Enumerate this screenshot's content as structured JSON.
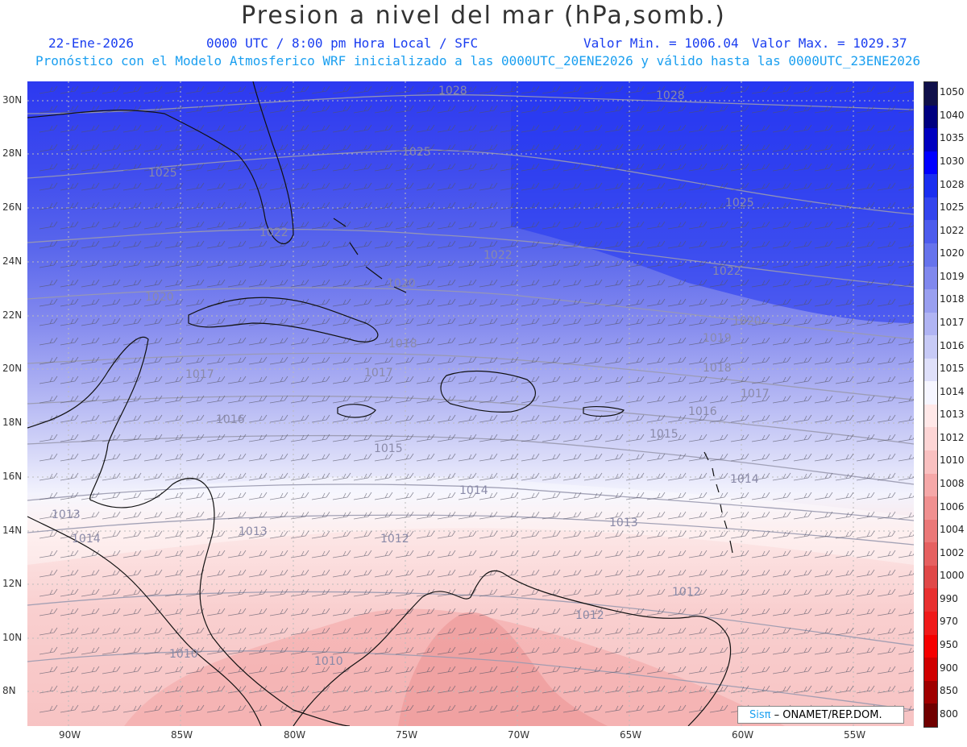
{
  "header": {
    "title": "Presion a nivel del mar (hPa,somb.)",
    "date": "22-Ene-2026",
    "time": "0000 UTC / 8:00 pm Hora Local / SFC",
    "vmin": "Valor Min. = 1006.04",
    "vmax": "Valor Max. = 1029.37",
    "forecast": "Pronóstico con el Modelo Atmosferico WRF inicializado a las 0000UTC_20ENE2026 y válido hasta las  0000UTC_23ENE2026"
  },
  "lat_labels": [
    "30N",
    "28N",
    "26N",
    "24N",
    "22N",
    "20N",
    "18N",
    "16N",
    "14N",
    "12N",
    "10N",
    "8N"
  ],
  "lon_labels": [
    "90W",
    "85W",
    "80W",
    "75W",
    "70W",
    "65W",
    "60W",
    "55W"
  ],
  "colorbar": {
    "labels": [
      "1050",
      "1040",
      "1035",
      "1030",
      "1028",
      "1025",
      "1022",
      "1020",
      "1019",
      "1018",
      "1017",
      "1016",
      "1015",
      "1014",
      "1013",
      "1012",
      "1010",
      "1008",
      "1006",
      "1004",
      "1002",
      "1000",
      "990",
      "970",
      "950",
      "900",
      "850",
      "800"
    ],
    "colors": [
      "#10104a",
      "#000080",
      "#0000c0",
      "#0000ff",
      "#1a2ef0",
      "#3345ee",
      "#4d5ced",
      "#6673ec",
      "#8088ee",
      "#999ff0",
      "#b0b4f3",
      "#c7caf6",
      "#dfe0fa",
      "#f6f6ff",
      "#ffe8e8",
      "#fdd5d5",
      "#f9c0c0",
      "#f5a8a8",
      "#f09090",
      "#eb7878",
      "#e66060",
      "#e04848",
      "#e83030",
      "#f01a1a",
      "#f50000",
      "#d00000",
      "#a00000",
      "#700000"
    ]
  },
  "contours": [
    {
      "label": "1028"
    },
    {
      "label": "1028"
    },
    {
      "label": "1025"
    },
    {
      "label": "1025"
    },
    {
      "label": "1025"
    },
    {
      "label": "1022"
    },
    {
      "label": "1022"
    },
    {
      "label": "1022"
    },
    {
      "label": "1020"
    },
    {
      "label": "1020"
    },
    {
      "label": "1020"
    },
    {
      "label": "1019"
    },
    {
      "label": "1018"
    },
    {
      "label": "1018"
    },
    {
      "label": "1017"
    },
    {
      "label": "1017"
    },
    {
      "label": "1017"
    },
    {
      "label": "1016"
    },
    {
      "label": "1016"
    },
    {
      "label": "1015"
    },
    {
      "label": "1015"
    },
    {
      "label": "1014"
    },
    {
      "label": "1014"
    },
    {
      "label": "1014"
    },
    {
      "label": "1013"
    },
    {
      "label": "1013"
    },
    {
      "label": "1013"
    },
    {
      "label": "1012"
    },
    {
      "label": "1012"
    },
    {
      "label": "1012"
    },
    {
      "label": "1010"
    },
    {
      "label": "1010"
    }
  ],
  "credit": {
    "sis": "Sisπ",
    "text": "– ONAMET/REP.DOM."
  },
  "colors": {
    "title": "#333333",
    "subtitle_blue": "#1a3df0",
    "subtitle_cyan": "#1a9ff0"
  }
}
